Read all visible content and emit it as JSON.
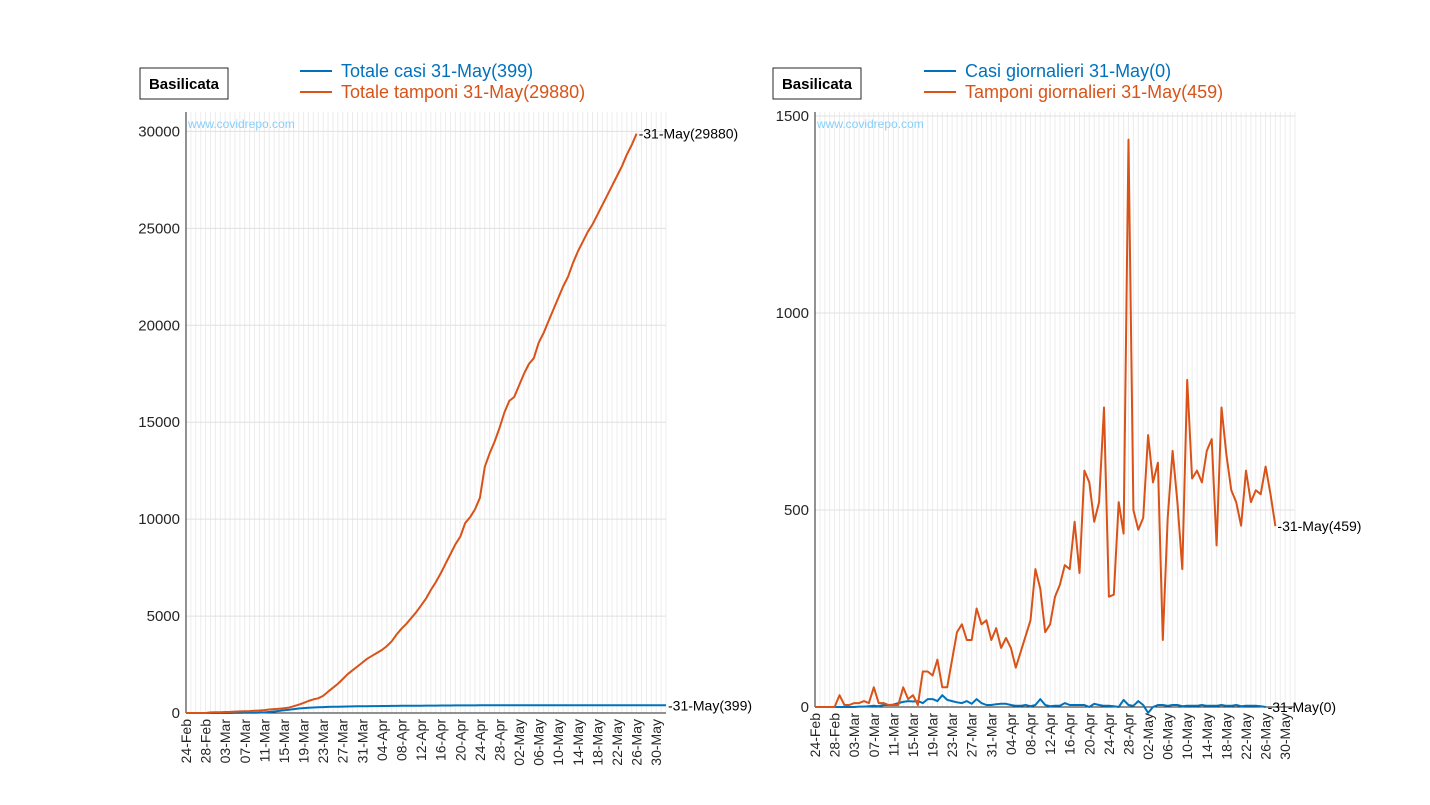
{
  "colors": {
    "cases": "#0072BD",
    "tests": "#D95319",
    "watermark": "#87CEFA"
  },
  "watermark": "www.covidrepo.com",
  "dates": [
    "24-Feb",
    "28-Feb",
    "03-Mar",
    "07-Mar",
    "11-Mar",
    "15-Mar",
    "19-Mar",
    "23-Mar",
    "27-Mar",
    "31-Mar",
    "04-Apr",
    "08-Apr",
    "12-Apr",
    "16-Apr",
    "20-Apr",
    "24-Apr",
    "28-Apr",
    "02-May",
    "06-May",
    "10-May",
    "14-May",
    "18-May",
    "22-May",
    "26-May",
    "30-May"
  ],
  "chart_data": [
    {
      "type": "line",
      "region_label": "Basilicata",
      "ylim": [
        0,
        31000
      ],
      "yticks": [
        0,
        5000,
        10000,
        15000,
        20000,
        25000,
        30000
      ],
      "legend": [
        "Totale casi 31-May(399)",
        "Totale tamponi 31-May(29880)"
      ],
      "end_labels": [
        "-31-May(399)",
        "-31-May(29880)"
      ],
      "series": [
        {
          "name": "Totale casi 31-May(399)",
          "values": [
            0,
            0,
            0,
            0,
            0,
            0,
            0,
            0,
            1,
            2,
            3,
            5,
            8,
            10,
            15,
            20,
            30,
            50,
            75,
            110,
            140,
            170,
            200,
            230,
            255,
            270,
            285,
            295,
            305,
            315,
            320,
            325,
            330,
            335,
            340,
            345,
            348,
            352,
            355,
            358,
            360,
            362,
            365,
            368,
            370,
            372,
            374,
            376,
            378,
            380,
            382,
            384,
            386,
            388,
            389,
            390,
            391,
            392,
            393,
            394,
            395,
            395,
            396,
            396,
            397,
            397,
            398,
            398,
            398,
            399,
            399,
            399,
            399,
            399,
            399,
            399,
            399,
            399,
            399,
            399,
            399,
            399,
            399,
            399,
            399,
            399,
            399,
            399,
            399,
            399,
            399,
            399,
            399,
            399,
            399,
            399,
            399,
            399,
            399
          ]
        },
        {
          "name": "Totale tamponi 31-May(29880)",
          "values": [
            0,
            0,
            0,
            0,
            0,
            30,
            35,
            40,
            50,
            55,
            70,
            80,
            90,
            100,
            120,
            130,
            150,
            180,
            200,
            220,
            250,
            280,
            350,
            430,
            520,
            620,
            700,
            760,
            880,
            1100,
            1300,
            1500,
            1750,
            2000,
            2200,
            2400,
            2600,
            2800,
            2950,
            3100,
            3250,
            3450,
            3700,
            4050,
            4350,
            4600,
            4900,
            5200,
            5550,
            5900,
            6350,
            6750,
            7200,
            7700,
            8200,
            8700,
            9100,
            9800,
            10100,
            10500,
            11100,
            12700,
            13400,
            14000,
            14700,
            15500,
            16100,
            16300,
            16900,
            17500,
            18000,
            18300,
            19100,
            19600,
            20200,
            20800,
            21400,
            22000,
            22500,
            23200,
            23800,
            24300,
            24800,
            25200,
            25700,
            26200,
            26700,
            27200,
            27700,
            28200,
            28800,
            29300,
            29880
          ]
        }
      ]
    },
    {
      "type": "line",
      "region_label": "Basilicata",
      "ylim": [
        0,
        1510
      ],
      "yticks": [
        0,
        500,
        1000,
        1500
      ],
      "legend": [
        "Casi giornalieri 31-May(0)",
        "Tamponi giornalieri 31-May(459)"
      ],
      "end_labels": [
        "-31-May(0)",
        "-31-May(459)"
      ],
      "series": [
        {
          "name": "Casi giornalieri 31-May(0)",
          "values": [
            0,
            0,
            0,
            0,
            0,
            0,
            0,
            0,
            0,
            1,
            1,
            2,
            3,
            2,
            5,
            5,
            6,
            10,
            13,
            15,
            14,
            15,
            10,
            20,
            20,
            15,
            30,
            18,
            15,
            12,
            10,
            15,
            8,
            20,
            10,
            5,
            5,
            7,
            8,
            8,
            5,
            3,
            3,
            5,
            2,
            5,
            20,
            5,
            2,
            3,
            3,
            10,
            5,
            5,
            5,
            5,
            0,
            8,
            5,
            3,
            3,
            2,
            0,
            18,
            5,
            3,
            15,
            5,
            -15,
            0,
            5,
            5,
            3,
            5,
            5,
            2,
            3,
            3,
            3,
            5,
            3,
            3,
            3,
            5,
            3,
            3,
            5,
            2,
            3,
            3,
            3,
            2,
            0
          ]
        },
        {
          "name": "Tamponi giornalieri 31-May(459)",
          "values": [
            0,
            0,
            0,
            0,
            0,
            30,
            5,
            5,
            10,
            10,
            15,
            10,
            50,
            10,
            10,
            5,
            5,
            5,
            50,
            20,
            30,
            5,
            90,
            90,
            80,
            120,
            50,
            50,
            120,
            190,
            210,
            170,
            170,
            250,
            210,
            220,
            170,
            200,
            150,
            175,
            150,
            100,
            140,
            180,
            220,
            350,
            300,
            190,
            210,
            280,
            310,
            360,
            350,
            470,
            340,
            600,
            570,
            470,
            520,
            760,
            280,
            285,
            520,
            440,
            1440,
            500,
            450,
            480,
            690,
            570,
            620,
            170,
            480,
            650,
            520,
            350,
            830,
            580,
            600,
            570,
            650,
            680,
            410,
            760,
            640,
            550,
            520,
            460,
            600,
            520,
            550,
            540,
            610,
            540,
            459
          ]
        }
      ]
    }
  ]
}
